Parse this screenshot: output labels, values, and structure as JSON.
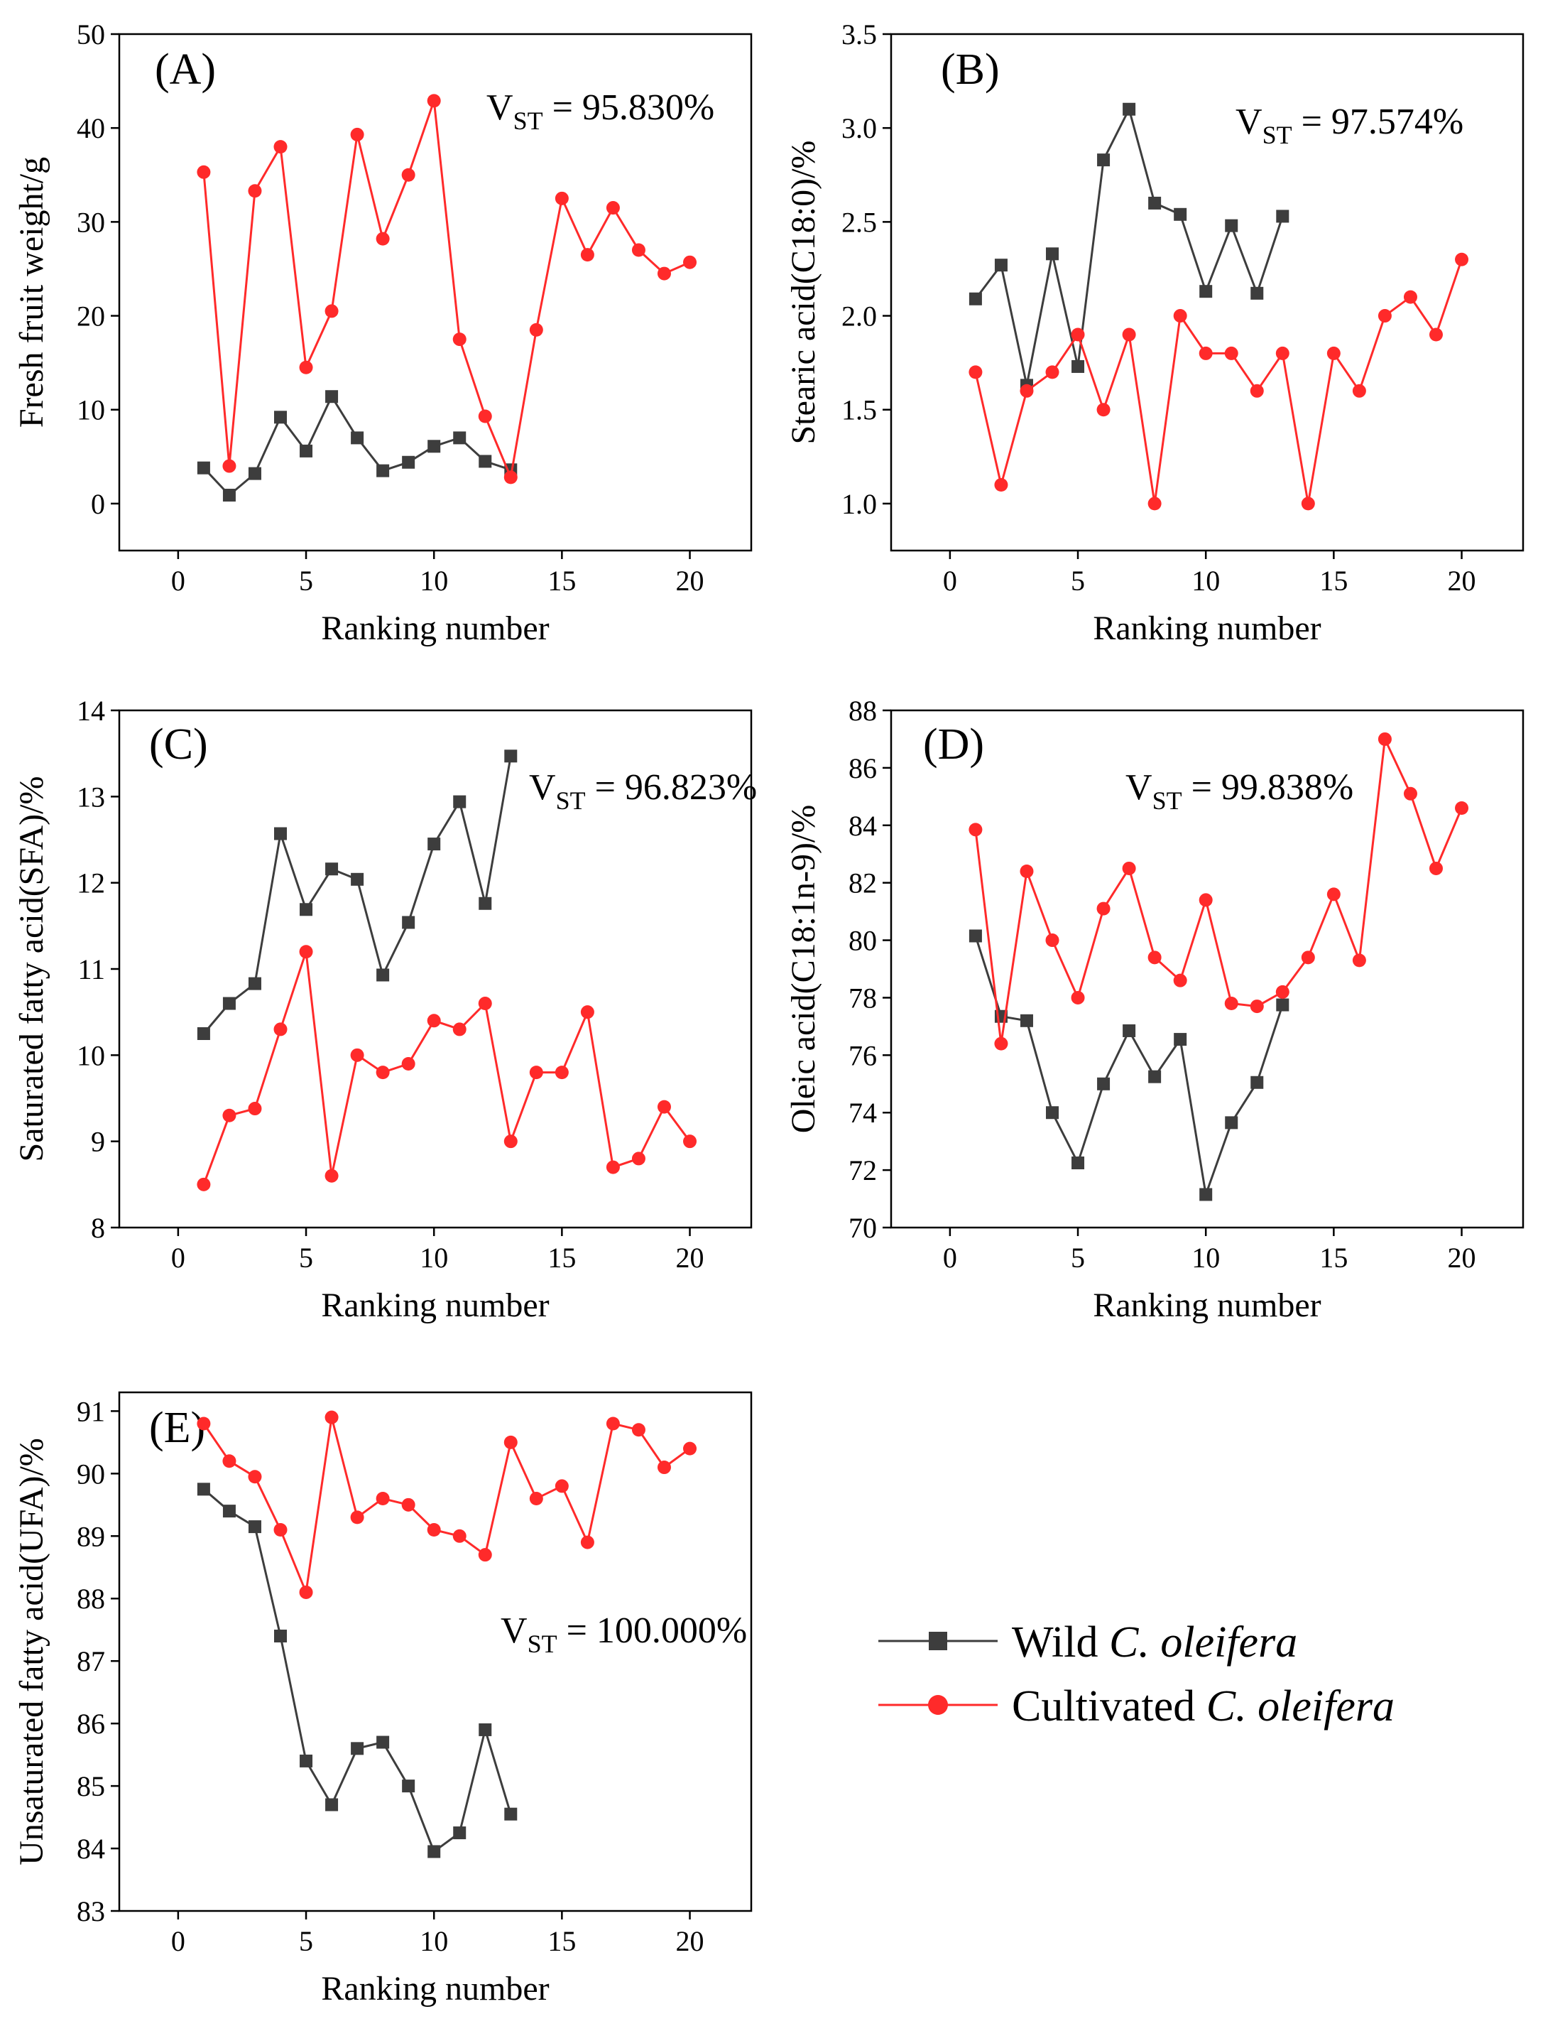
{
  "colors": {
    "wild": "#3d3d3d",
    "cultivated": "#ff2a2a",
    "axis": "#000000",
    "background": "#ffffff"
  },
  "legend": {
    "items": [
      {
        "key": "wild",
        "prefix": "Wild ",
        "italic": "C. oleifera",
        "color": "#3d3d3d",
        "marker": "square"
      },
      {
        "key": "cultivated",
        "prefix": "Cultivated ",
        "italic": "C. oleifera",
        "color": "#ff2a2a",
        "marker": "circle"
      }
    ]
  },
  "chart_data": [
    {
      "panel": "(A)",
      "type": "line",
      "xlabel": "Ranking number",
      "ylabel": "Fresh fruit weight/g",
      "xlim": [
        -2.3,
        22.4
      ],
      "ylim": [
        -5,
        50
      ],
      "xticks": [
        0,
        5,
        10,
        15,
        20
      ],
      "yticks": [
        0,
        10,
        20,
        30,
        40,
        50
      ],
      "annotation": {
        "main": "V",
        "sub": "ST",
        "value": " = 95.830%"
      },
      "series": [
        {
          "name": "Wild C. oleifera",
          "color": "#3d3d3d",
          "marker": "square",
          "x": [
            1,
            2,
            3,
            4,
            5,
            6,
            7,
            8,
            9,
            10,
            11,
            12,
            13
          ],
          "y": [
            3.8,
            0.9,
            3.2,
            9.2,
            5.6,
            11.4,
            7.0,
            3.5,
            4.4,
            6.1,
            7.0,
            4.5,
            3.6
          ]
        },
        {
          "name": "Cultivated C. oleifera",
          "color": "#ff2a2a",
          "marker": "circle",
          "x": [
            1,
            2,
            3,
            4,
            5,
            6,
            7,
            8,
            9,
            10,
            11,
            12,
            13,
            14,
            15,
            16,
            17,
            18,
            19,
            20
          ],
          "y": [
            35.3,
            4.0,
            33.3,
            38.0,
            14.5,
            20.5,
            39.3,
            28.2,
            35.0,
            42.9,
            17.5,
            9.3,
            2.8,
            18.5,
            32.5,
            26.5,
            31.5,
            27.0,
            24.5,
            25.7
          ]
        }
      ]
    },
    {
      "panel": "(B)",
      "type": "line",
      "xlabel": "Ranking number",
      "ylabel": "Stearic acid(C18:0)/%",
      "xlim": [
        -2.3,
        22.4
      ],
      "ylim": [
        0.75,
        3.5
      ],
      "xticks": [
        0,
        5,
        10,
        15,
        20
      ],
      "yticks": [
        1.0,
        1.5,
        2.0,
        2.5,
        3.0,
        3.5
      ],
      "annotation": {
        "main": "V",
        "sub": "ST",
        "value": " = 97.574%"
      },
      "series": [
        {
          "name": "Wild C. oleifera",
          "color": "#3d3d3d",
          "marker": "square",
          "x": [
            1,
            2,
            3,
            4,
            5,
            6,
            7,
            8,
            9,
            10,
            11,
            12,
            13
          ],
          "y": [
            2.09,
            2.27,
            1.63,
            2.33,
            1.73,
            2.83,
            3.1,
            2.6,
            2.54,
            2.13,
            2.48,
            2.12,
            2.53
          ]
        },
        {
          "name": "Cultivated C. oleifera",
          "color": "#ff2a2a",
          "marker": "circle",
          "x": [
            1,
            2,
            3,
            4,
            5,
            6,
            7,
            8,
            9,
            10,
            11,
            12,
            13,
            14,
            15,
            16,
            17,
            18,
            19,
            20
          ],
          "y": [
            1.7,
            1.1,
            1.6,
            1.7,
            1.9,
            1.5,
            1.9,
            1.0,
            2.0,
            1.8,
            1.8,
            1.6,
            1.8,
            1.0,
            1.8,
            1.6,
            2.0,
            2.1,
            1.9,
            2.3
          ]
        }
      ]
    },
    {
      "panel": "(C)",
      "type": "line",
      "xlabel": "Ranking number",
      "ylabel": "Saturated fatty acid(SFA)/%",
      "xlim": [
        -2.3,
        22.4
      ],
      "ylim": [
        8,
        14
      ],
      "xticks": [
        0,
        5,
        10,
        15,
        20
      ],
      "yticks": [
        8,
        9,
        10,
        11,
        12,
        13,
        14
      ],
      "annotation": {
        "main": "V",
        "sub": "ST",
        "value": " = 96.823%"
      },
      "series": [
        {
          "name": "Wild C. oleifera",
          "color": "#3d3d3d",
          "marker": "square",
          "x": [
            1,
            2,
            3,
            4,
            5,
            6,
            7,
            8,
            9,
            10,
            11,
            12,
            13
          ],
          "y": [
            10.25,
            10.6,
            10.83,
            12.57,
            11.69,
            12.16,
            12.04,
            10.93,
            11.54,
            12.45,
            12.94,
            11.76,
            13.47
          ]
        },
        {
          "name": "Cultivated C. oleifera",
          "color": "#ff2a2a",
          "marker": "circle",
          "x": [
            1,
            2,
            3,
            4,
            5,
            6,
            7,
            8,
            9,
            10,
            11,
            12,
            13,
            14,
            15,
            16,
            17,
            18,
            19,
            20
          ],
          "y": [
            8.5,
            9.3,
            9.38,
            10.3,
            11.2,
            8.6,
            10.0,
            9.8,
            9.9,
            10.4,
            10.3,
            10.6,
            9.0,
            9.8,
            9.8,
            10.5,
            8.7,
            8.8,
            9.4,
            9.0
          ]
        }
      ]
    },
    {
      "panel": "(D)",
      "type": "line",
      "xlabel": "Ranking number",
      "ylabel": "Oleic acid(C18:1n-9)/%",
      "xlim": [
        -2.3,
        22.4
      ],
      "ylim": [
        70,
        88
      ],
      "xticks": [
        0,
        5,
        10,
        15,
        20
      ],
      "yticks": [
        70,
        72,
        74,
        76,
        78,
        80,
        82,
        84,
        86,
        88
      ],
      "annotation": {
        "main": "V",
        "sub": "ST",
        "value": " = 99.838%"
      },
      "series": [
        {
          "name": "Wild C. oleifera",
          "color": "#3d3d3d",
          "marker": "square",
          "x": [
            1,
            2,
            3,
            4,
            5,
            6,
            7,
            8,
            9,
            10,
            11,
            12,
            13
          ],
          "y": [
            80.15,
            77.35,
            77.2,
            74.0,
            72.25,
            75.0,
            76.85,
            75.25,
            76.55,
            71.15,
            73.65,
            75.05,
            77.75
          ]
        },
        {
          "name": "Cultivated C. oleifera",
          "color": "#ff2a2a",
          "marker": "circle",
          "x": [
            1,
            2,
            3,
            4,
            5,
            6,
            7,
            8,
            9,
            10,
            11,
            12,
            13,
            14,
            15,
            16,
            17,
            18,
            19,
            20
          ],
          "y": [
            83.85,
            76.4,
            82.4,
            80.0,
            78.0,
            81.1,
            82.5,
            79.4,
            78.6,
            81.4,
            77.8,
            77.7,
            78.2,
            79.4,
            81.6,
            79.3,
            87.0,
            85.1,
            82.5,
            84.6
          ]
        }
      ]
    },
    {
      "panel": "(E)",
      "type": "line",
      "xlabel": "Ranking number",
      "ylabel": "Unsaturated fatty acid(UFA)/%",
      "xlim": [
        -2.3,
        22.4
      ],
      "ylim": [
        83,
        91.3
      ],
      "xticks": [
        0,
        5,
        10,
        15,
        20
      ],
      "yticks": [
        83,
        84,
        85,
        86,
        87,
        88,
        89,
        90,
        91
      ],
      "annotation": {
        "main": "V",
        "sub": "ST",
        "value": " = 100.000%"
      },
      "series": [
        {
          "name": "Wild C. oleifera",
          "color": "#3d3d3d",
          "marker": "square",
          "x": [
            1,
            2,
            3,
            4,
            5,
            6,
            7,
            8,
            9,
            10,
            11,
            12,
            13
          ],
          "y": [
            89.75,
            89.4,
            89.15,
            87.4,
            85.4,
            84.7,
            85.6,
            85.7,
            85.0,
            83.95,
            84.25,
            85.9,
            84.55
          ]
        },
        {
          "name": "Cultivated C. oleifera",
          "color": "#ff2a2a",
          "marker": "circle",
          "x": [
            1,
            2,
            3,
            4,
            5,
            6,
            7,
            8,
            9,
            10,
            11,
            12,
            13,
            14,
            15,
            16,
            17,
            18,
            19,
            20
          ],
          "y": [
            90.8,
            90.2,
            89.95,
            89.1,
            88.1,
            90.9,
            89.3,
            89.6,
            89.5,
            89.1,
            89.0,
            88.7,
            90.5,
            89.6,
            89.8,
            88.9,
            90.8,
            90.7,
            90.1,
            90.4
          ]
        }
      ]
    }
  ]
}
